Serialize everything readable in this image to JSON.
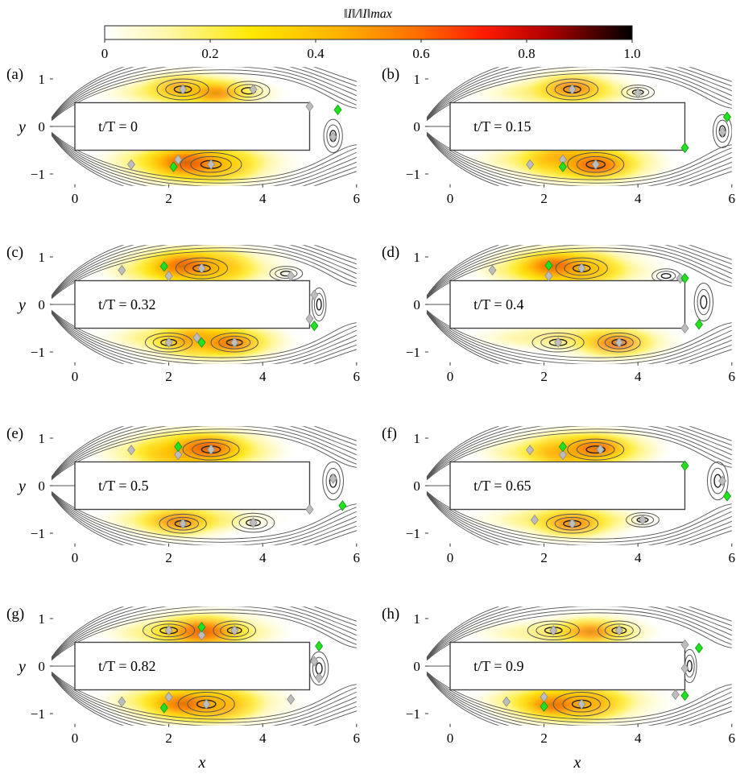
{
  "colorbar": {
    "label": "‖I‖/‖I‖max",
    "ticks": [
      "0",
      "0.2",
      "0.4",
      "0.6",
      "0.8",
      "1.0"
    ],
    "tick_values": [
      0,
      0.2,
      0.4,
      0.6,
      0.8,
      1.0
    ],
    "colormap": [
      "#ffffff",
      "#fff59a",
      "#ffe400",
      "#ffb300",
      "#ff7a00",
      "#ff2a00",
      "#c80000",
      "#5a0000",
      "#000000"
    ]
  },
  "colors": {
    "contour": "#555555",
    "marker_gray": "#bdbdbd",
    "marker_green": "#22e022",
    "body_fill": "#ffffff",
    "body_stroke": "#444444"
  },
  "chart_data": {
    "type": "heatmap",
    "xlabel": "x",
    "ylabel": "y",
    "xticks": [
      "0",
      "2",
      "4",
      "6"
    ],
    "yticks": [
      "1",
      "0",
      "−1"
    ],
    "xlim": [
      -0.5,
      6
    ],
    "ylim": [
      -1.25,
      1.25
    ],
    "body": {
      "x": [
        0,
        5
      ],
      "y": [
        -0.5,
        0.5
      ]
    },
    "panels": [
      {
        "tag": "(a)",
        "label": "t/T = 0",
        "hot": [
          {
            "x": 2.8,
            "y": -0.8,
            "v": 1.0
          },
          {
            "x": 2.4,
            "y": -0.75,
            "v": 0.85
          },
          {
            "x": 2.3,
            "y": 0.8,
            "v": 0.3
          },
          {
            "x": 3.0,
            "y": 0.7,
            "v": 0.25
          }
        ],
        "vortices": [
          {
            "x": 2.3,
            "y": 0.78,
            "rx": 0.55,
            "ry": 0.22
          },
          {
            "x": 3.7,
            "y": 0.75,
            "rx": 0.45,
            "ry": 0.2
          },
          {
            "x": 2.9,
            "y": -0.8,
            "rx": 0.65,
            "ry": 0.25
          },
          {
            "x": 5.5,
            "y": -0.2,
            "rx": 0.2,
            "ry": 0.35
          }
        ],
        "gray": [
          {
            "x": 2.3,
            "y": 0.78
          },
          {
            "x": 3.8,
            "y": 0.78
          },
          {
            "x": 5.0,
            "y": 0.42
          },
          {
            "x": 5.5,
            "y": -0.22
          },
          {
            "x": 1.2,
            "y": -0.8
          },
          {
            "x": 2.2,
            "y": -0.7
          },
          {
            "x": 2.9,
            "y": -0.8
          }
        ],
        "green": [
          {
            "x": 5.6,
            "y": 0.35
          },
          {
            "x": 2.1,
            "y": -0.85
          }
        ]
      },
      {
        "tag": "(b)",
        "label": "t/T = 0.15",
        "hot": [
          {
            "x": 2.6,
            "y": -0.7,
            "v": 0.95
          },
          {
            "x": 3.1,
            "y": -0.8,
            "v": 0.6
          },
          {
            "x": 2.6,
            "y": 0.8,
            "v": 0.35
          }
        ],
        "vortices": [
          {
            "x": 2.6,
            "y": 0.78,
            "rx": 0.55,
            "ry": 0.22
          },
          {
            "x": 4.0,
            "y": 0.72,
            "rx": 0.35,
            "ry": 0.15
          },
          {
            "x": 3.1,
            "y": -0.8,
            "rx": 0.6,
            "ry": 0.25
          },
          {
            "x": 5.8,
            "y": -0.1,
            "rx": 0.2,
            "ry": 0.35
          }
        ],
        "gray": [
          {
            "x": 2.6,
            "y": 0.78
          },
          {
            "x": 4.0,
            "y": 0.7
          },
          {
            "x": 5.8,
            "y": -0.12
          },
          {
            "x": 1.7,
            "y": -0.8
          },
          {
            "x": 2.4,
            "y": -0.7
          },
          {
            "x": 3.1,
            "y": -0.8
          }
        ],
        "green": [
          {
            "x": 5.9,
            "y": 0.2
          },
          {
            "x": 5.0,
            "y": -0.45
          },
          {
            "x": 2.4,
            "y": -0.85
          }
        ]
      },
      {
        "tag": "(c)",
        "label": "t/T = 0.32",
        "hot": [
          {
            "x": 2.7,
            "y": 0.78,
            "v": 1.0
          },
          {
            "x": 2.3,
            "y": 0.8,
            "v": 0.6
          },
          {
            "x": 2.7,
            "y": -0.75,
            "v": 0.8
          },
          {
            "x": 3.3,
            "y": -0.8,
            "v": 0.35
          }
        ],
        "vortices": [
          {
            "x": 2.7,
            "y": 0.76,
            "rx": 0.55,
            "ry": 0.22
          },
          {
            "x": 4.5,
            "y": 0.65,
            "rx": 0.35,
            "ry": 0.15
          },
          {
            "x": 2.0,
            "y": -0.8,
            "rx": 0.5,
            "ry": 0.2
          },
          {
            "x": 3.4,
            "y": -0.8,
            "rx": 0.5,
            "ry": 0.2
          },
          {
            "x": 5.2,
            "y": 0.0,
            "rx": 0.15,
            "ry": 0.35
          }
        ],
        "gray": [
          {
            "x": 1.0,
            "y": 0.72
          },
          {
            "x": 2.0,
            "y": 0.6
          },
          {
            "x": 2.7,
            "y": 0.76
          },
          {
            "x": 4.6,
            "y": 0.6
          },
          {
            "x": 5.1,
            "y": 0.2
          },
          {
            "x": 5.0,
            "y": -0.3
          },
          {
            "x": 2.0,
            "y": -0.8
          },
          {
            "x": 2.6,
            "y": -0.7
          },
          {
            "x": 3.4,
            "y": -0.8
          }
        ],
        "green": [
          {
            "x": 1.9,
            "y": 0.8
          },
          {
            "x": 5.1,
            "y": -0.45
          },
          {
            "x": 2.7,
            "y": -0.8
          }
        ]
      },
      {
        "tag": "(d)",
        "label": "t/T = 0.4",
        "hot": [
          {
            "x": 2.6,
            "y": 0.75,
            "v": 0.95
          },
          {
            "x": 2.2,
            "y": 0.8,
            "v": 0.55
          },
          {
            "x": 3.5,
            "y": -0.8,
            "v": 0.35
          }
        ],
        "vortices": [
          {
            "x": 2.8,
            "y": 0.76,
            "rx": 0.55,
            "ry": 0.22
          },
          {
            "x": 4.6,
            "y": 0.6,
            "rx": 0.3,
            "ry": 0.15
          },
          {
            "x": 2.3,
            "y": -0.8,
            "rx": 0.55,
            "ry": 0.2
          },
          {
            "x": 3.6,
            "y": -0.8,
            "rx": 0.45,
            "ry": 0.2
          },
          {
            "x": 5.4,
            "y": 0.05,
            "rx": 0.2,
            "ry": 0.4
          }
        ],
        "gray": [
          {
            "x": 0.9,
            "y": 0.72
          },
          {
            "x": 2.1,
            "y": 0.6
          },
          {
            "x": 2.8,
            "y": 0.76
          },
          {
            "x": 4.9,
            "y": 0.55
          },
          {
            "x": 5.0,
            "y": -0.5
          },
          {
            "x": 2.3,
            "y": -0.8
          },
          {
            "x": 3.6,
            "y": -0.8
          }
        ],
        "green": [
          {
            "x": 2.1,
            "y": 0.82
          },
          {
            "x": 5.0,
            "y": 0.55
          },
          {
            "x": 5.3,
            "y": -0.42
          }
        ]
      },
      {
        "tag": "(e)",
        "label": "t/T = 0.5",
        "hot": [
          {
            "x": 2.4,
            "y": 0.7,
            "v": 1.0
          },
          {
            "x": 2.8,
            "y": 0.78,
            "v": 0.7
          },
          {
            "x": 2.2,
            "y": -0.75,
            "v": 0.35
          }
        ],
        "vortices": [
          {
            "x": 2.9,
            "y": 0.76,
            "rx": 0.6,
            "ry": 0.22
          },
          {
            "x": 2.3,
            "y": -0.8,
            "rx": 0.5,
            "ry": 0.2
          },
          {
            "x": 3.8,
            "y": -0.78,
            "rx": 0.45,
            "ry": 0.2
          },
          {
            "x": 5.5,
            "y": 0.1,
            "rx": 0.22,
            "ry": 0.4
          }
        ],
        "gray": [
          {
            "x": 1.2,
            "y": 0.75
          },
          {
            "x": 2.2,
            "y": 0.65
          },
          {
            "x": 2.9,
            "y": 0.76
          },
          {
            "x": 5.5,
            "y": 0.15
          },
          {
            "x": 5.0,
            "y": -0.5
          },
          {
            "x": 2.3,
            "y": -0.8
          },
          {
            "x": 3.8,
            "y": -0.78
          }
        ],
        "green": [
          {
            "x": 2.2,
            "y": 0.82
          },
          {
            "x": 5.7,
            "y": -0.42
          }
        ]
      },
      {
        "tag": "(f)",
        "label": "t/T = 0.65",
        "hot": [
          {
            "x": 2.6,
            "y": 0.72,
            "v": 0.85
          },
          {
            "x": 3.1,
            "y": 0.78,
            "v": 0.45
          },
          {
            "x": 2.6,
            "y": -0.78,
            "v": 0.35
          }
        ],
        "vortices": [
          {
            "x": 3.1,
            "y": 0.76,
            "rx": 0.6,
            "ry": 0.22
          },
          {
            "x": 2.6,
            "y": -0.8,
            "rx": 0.55,
            "ry": 0.2
          },
          {
            "x": 4.1,
            "y": -0.72,
            "rx": 0.35,
            "ry": 0.15
          },
          {
            "x": 5.7,
            "y": 0.1,
            "rx": 0.22,
            "ry": 0.4
          }
        ],
        "gray": [
          {
            "x": 1.7,
            "y": 0.75
          },
          {
            "x": 2.4,
            "y": 0.65
          },
          {
            "x": 3.2,
            "y": 0.76
          },
          {
            "x": 5.8,
            "y": 0.1
          },
          {
            "x": 1.8,
            "y": -0.72
          },
          {
            "x": 2.6,
            "y": -0.8
          },
          {
            "x": 4.1,
            "y": -0.72
          }
        ],
        "green": [
          {
            "x": 2.4,
            "y": 0.82
          },
          {
            "x": 5.0,
            "y": 0.42
          },
          {
            "x": 5.9,
            "y": -0.22
          }
        ]
      },
      {
        "tag": "(g)",
        "label": "t/T = 0.82",
        "hot": [
          {
            "x": 2.7,
            "y": 0.72,
            "v": 0.8
          },
          {
            "x": 2.8,
            "y": -0.8,
            "v": 1.0
          },
          {
            "x": 2.3,
            "y": -0.78,
            "v": 0.55
          }
        ],
        "vortices": [
          {
            "x": 2.0,
            "y": 0.75,
            "rx": 0.55,
            "ry": 0.2
          },
          {
            "x": 3.4,
            "y": 0.75,
            "rx": 0.45,
            "ry": 0.2
          },
          {
            "x": 2.8,
            "y": -0.8,
            "rx": 0.6,
            "ry": 0.25
          },
          {
            "x": 5.2,
            "y": -0.05,
            "rx": 0.2,
            "ry": 0.35
          }
        ],
        "gray": [
          {
            "x": 2.0,
            "y": 0.75
          },
          {
            "x": 2.7,
            "y": 0.65
          },
          {
            "x": 3.4,
            "y": 0.75
          },
          {
            "x": 5.1,
            "y": 0.1
          },
          {
            "x": 5.2,
            "y": -0.25
          },
          {
            "x": 1.0,
            "y": -0.75
          },
          {
            "x": 2.0,
            "y": -0.65
          },
          {
            "x": 2.8,
            "y": -0.8
          },
          {
            "x": 4.6,
            "y": -0.7
          }
        ],
        "green": [
          {
            "x": 2.7,
            "y": 0.82
          },
          {
            "x": 5.2,
            "y": 0.42
          },
          {
            "x": 1.9,
            "y": -0.88
          }
        ]
      },
      {
        "tag": "(h)",
        "label": "t/T = 0.9",
        "hot": [
          {
            "x": 2.7,
            "y": -0.78,
            "v": 0.95
          },
          {
            "x": 3.0,
            "y": 0.72,
            "v": 0.3
          },
          {
            "x": 2.2,
            "y": -0.8,
            "v": 0.45
          }
        ],
        "vortices": [
          {
            "x": 2.2,
            "y": 0.75,
            "rx": 0.55,
            "ry": 0.2
          },
          {
            "x": 3.6,
            "y": 0.75,
            "rx": 0.45,
            "ry": 0.2
          },
          {
            "x": 2.8,
            "y": -0.8,
            "rx": 0.6,
            "ry": 0.25
          },
          {
            "x": 5.1,
            "y": 0.0,
            "rx": 0.15,
            "ry": 0.35
          }
        ],
        "gray": [
          {
            "x": 2.2,
            "y": 0.75
          },
          {
            "x": 3.6,
            "y": 0.75
          },
          {
            "x": 5.0,
            "y": 0.45
          },
          {
            "x": 5.0,
            "y": -0.05
          },
          {
            "x": 1.2,
            "y": -0.75
          },
          {
            "x": 2.0,
            "y": -0.65
          },
          {
            "x": 2.8,
            "y": -0.8
          },
          {
            "x": 4.8,
            "y": -0.6
          }
        ],
        "green": [
          {
            "x": 5.3,
            "y": 0.38
          },
          {
            "x": 5.0,
            "y": -0.62
          },
          {
            "x": 2.0,
            "y": -0.85
          }
        ]
      }
    ]
  }
}
